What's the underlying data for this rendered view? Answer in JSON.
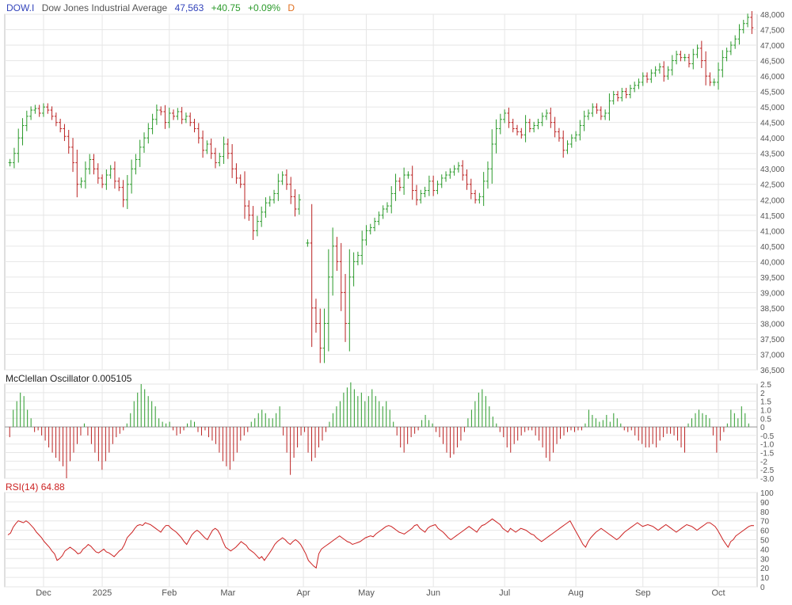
{
  "header": {
    "symbol": "DOW.I",
    "name": "Dow Jones Industrial Average",
    "price": "47,563",
    "change": "+40.75",
    "change_pct": "+0.09%",
    "period": "D"
  },
  "colors": {
    "up": "#2a9a2a",
    "down": "#bb2222",
    "rsi_line": "#cc2222",
    "grid": "#e6e6e6",
    "frame": "#bfbfbf",
    "header_blue": "#3344bb",
    "header_orange": "#e07020"
  },
  "chart_data": [
    {
      "type": "ohlc-bar",
      "panel": "price",
      "name": "Dow Jones Industrial Average",
      "y_axis_side": "right",
      "ylim": [
        36500,
        48000
      ],
      "y_ticks": [
        "48,000",
        "47,500",
        "47,000",
        "46,500",
        "46,000",
        "45,500",
        "45,000",
        "44,500",
        "44,000",
        "43,500",
        "43,000",
        "42,500",
        "42,000",
        "41,500",
        "41,000",
        "40,500",
        "40,000",
        "39,500",
        "39,000",
        "38,500",
        "38,000",
        "37,500",
        "37,000",
        "36,500"
      ],
      "x_ticks": [
        "Dec",
        "2025",
        "Feb",
        "Mar",
        "Apr",
        "May",
        "Jun",
        "Jul",
        "Aug",
        "Sep",
        "Oct"
      ],
      "x_tick_positions_bar": [
        10,
        29,
        50,
        68,
        91,
        111,
        132,
        155,
        177,
        198,
        221
      ],
      "grid": true,
      "closes": [
        43200,
        43500,
        44000,
        44400,
        44700,
        44900,
        44950,
        44800,
        45000,
        44900,
        44700,
        44500,
        44300,
        44050,
        43700,
        43200,
        42500,
        42600,
        43000,
        43300,
        43000,
        42700,
        42500,
        42800,
        43000,
        42600,
        42400,
        42000,
        42500,
        43000,
        43300,
        43700,
        44000,
        44300,
        44600,
        44900,
        44850,
        44500,
        44800,
        44700,
        44850,
        44600,
        44700,
        44500,
        44300,
        44000,
        43600,
        43800,
        43500,
        43200,
        43400,
        43800,
        43500,
        43000,
        42700,
        42500,
        41800,
        41500,
        41000,
        41300,
        41600,
        41900,
        42000,
        42200,
        42600,
        42800,
        42500,
        42100,
        41700,
        42000,
        null,
        40600,
        38500,
        38000,
        37200,
        38000,
        39500,
        40500,
        40000,
        39000,
        38000,
        39500,
        40000,
        40200,
        40700,
        41000,
        41100,
        41300,
        41500,
        41700,
        41800,
        42200,
        42600,
        42400,
        42800,
        42800,
        42300,
        42000,
        42200,
        42300,
        42600,
        42300,
        42500,
        42700,
        42800,
        42900,
        43000,
        43100,
        42800,
        42500,
        42200,
        42000,
        42100,
        42600,
        43000,
        43800,
        44300,
        44600,
        44800,
        44500,
        44300,
        44200,
        44100,
        44500,
        44300,
        44400,
        44500,
        44700,
        44800,
        44500,
        44200,
        44000,
        43600,
        43800,
        44000,
        44100,
        44400,
        44700,
        44800,
        45000,
        44900,
        44700,
        44800,
        45200,
        45400,
        45300,
        45500,
        45400,
        45600,
        45700,
        45800,
        46000,
        45900,
        46100,
        46200,
        46300,
        46000,
        46200,
        46500,
        46700,
        46600,
        46600,
        46400,
        46700,
        46900,
        46500,
        46000,
        45800,
        45800,
        46200,
        46600,
        46800,
        47000,
        47200,
        47500,
        47700,
        47900,
        47563
      ],
      "values_note_omitted": true
    },
    {
      "type": "bar",
      "panel": "McClellan Oscillator",
      "title": "McClellan Oscillator",
      "last_value": "0.005105",
      "ylim": [
        -3.0,
        2.5
      ],
      "y_ticks": [
        "2.5",
        "2",
        "1.5",
        "1.0",
        "0.5",
        "0",
        "-0.5",
        "-1.0",
        "-1.5",
        "-2",
        "-2.5",
        "-3.0"
      ],
      "values": [
        -0.6,
        1.0,
        1.5,
        2.0,
        1.8,
        1.0,
        0.5,
        -0.3,
        -0.2,
        -0.5,
        -0.8,
        -1.2,
        -1.5,
        -1.8,
        -2.0,
        -2.3,
        -3.0,
        -2.0,
        -1.5,
        -1.0,
        -0.5,
        0.2,
        -0.5,
        -1.0,
        -1.5,
        -2.0,
        -2.5,
        -2.0,
        -1.5,
        -1.0,
        -0.6,
        -0.4,
        -0.2,
        0.2,
        0.8,
        1.5,
        2.0,
        2.5,
        2.2,
        1.8,
        1.5,
        1.2,
        0.5,
        0.3,
        0.2,
        0.3,
        -0.2,
        -0.5,
        -0.4,
        -0.2,
        0.2,
        0.4,
        0.3,
        -0.3,
        -0.5,
        -0.2,
        -0.6,
        -0.8,
        -1.0,
        -1.5,
        -2.0,
        -2.3,
        -2.5,
        -2.0,
        -1.5,
        -0.8,
        -0.5,
        -0.3,
        0.3,
        0.5,
        0.8,
        1.0,
        0.8,
        0.5,
        0.5,
        0.8,
        1.2,
        -0.5,
        -1.5,
        -2.8,
        -1.8,
        -1.2,
        -0.5,
        -0.3,
        -1.5,
        -2.0,
        -1.8,
        -1.2,
        -0.8,
        -0.3,
        0.3,
        0.8,
        1.2,
        1.5,
        2.0,
        2.3,
        2.6,
        2.2,
        1.8,
        2.0,
        1.5,
        1.8,
        2.2,
        1.8,
        1.5,
        1.2,
        1.5,
        1.0,
        0.3,
        -0.5,
        -1.2,
        -1.5,
        -1.0,
        -0.6,
        -0.4,
        -0.2,
        0.4,
        0.7,
        0.4,
        0.2,
        -0.3,
        -0.6,
        -1.0,
        -1.5,
        -1.8,
        -1.6,
        -1.2,
        -0.8,
        -0.3,
        0.5,
        1.0,
        1.5,
        2.0,
        2.2,
        1.8,
        1.2,
        0.6,
        0.2,
        -0.3,
        -0.6,
        -1.2,
        -1.5,
        -1.0,
        -0.8,
        -0.5,
        -0.3,
        -0.2,
        -0.2,
        -0.5,
        -0.8,
        -1.2,
        -1.8,
        -2.0,
        -1.5,
        -1.0,
        -0.7,
        -0.5,
        -0.3,
        -0.2,
        -0.3,
        -0.2,
        -0.2,
        0.2,
        1.0,
        0.7,
        0.5,
        0.3,
        0.4,
        0.7,
        0.3,
        0.8,
        0.5,
        0.2,
        -0.2,
        -0.3,
        -0.2,
        -0.5,
        -0.8,
        -1.0,
        -1.2,
        -1.2,
        -1.0,
        -1.2,
        -0.8,
        -0.6,
        -0.4,
        -0.4,
        -0.5,
        -0.8,
        -1.2,
        -1.5,
        0.2,
        0.5,
        0.8,
        1.0,
        0.8,
        0.7,
        0.5,
        -0.5,
        -1.5,
        -0.8,
        -0.3,
        0.2,
        1.0,
        0.8,
        0.5,
        1.2,
        0.8,
        0.2,
        0.0
      ]
    },
    {
      "type": "line",
      "panel": "RSI",
      "title": "RSI(14)",
      "last_value": "64.88",
      "ylim": [
        0,
        100
      ],
      "y_ticks": [
        "100",
        "90",
        "80",
        "70",
        "60",
        "50",
        "40",
        "30",
        "20",
        "10",
        "0"
      ],
      "values": [
        55,
        57,
        63,
        67,
        70,
        69,
        68,
        70,
        68,
        65,
        62,
        58,
        55,
        52,
        48,
        45,
        42,
        38,
        35,
        28,
        30,
        33,
        38,
        40,
        42,
        40,
        38,
        35,
        36,
        40,
        42,
        45,
        43,
        40,
        37,
        36,
        38,
        40,
        37,
        36,
        34,
        32,
        35,
        38,
        40,
        45,
        52,
        55,
        58,
        62,
        65,
        66,
        65,
        68,
        67,
        66,
        64,
        62,
        60,
        58,
        62,
        65,
        65,
        62,
        60,
        58,
        55,
        52,
        48,
        45,
        50,
        55,
        58,
        60,
        58,
        55,
        52,
        50,
        55,
        60,
        62,
        60,
        55,
        48,
        42,
        40,
        38,
        40,
        42,
        45,
        48,
        46,
        44,
        40,
        38,
        36,
        33,
        30,
        32,
        28,
        32,
        36,
        40,
        45,
        48,
        50,
        52,
        50,
        47,
        45,
        48,
        50,
        48,
        45,
        40,
        35,
        28,
        25,
        22,
        20,
        35,
        40,
        42,
        44,
        46,
        48,
        50,
        52,
        54,
        52,
        50,
        48,
        47,
        45,
        46,
        47,
        48,
        50,
        52,
        53,
        54,
        53,
        56,
        58,
        60,
        62,
        64,
        65,
        64,
        62,
        60,
        58,
        57,
        56,
        58,
        60,
        62,
        65,
        66,
        62,
        60,
        58,
        62,
        64,
        65,
        66,
        62,
        60,
        58,
        55,
        52,
        50,
        52,
        54,
        56,
        58,
        60,
        62,
        64,
        62,
        60,
        58,
        62,
        65,
        66,
        68,
        70,
        72,
        70,
        68,
        66,
        62,
        60,
        58,
        62,
        60,
        58,
        60,
        62,
        61,
        60,
        58,
        56,
        55,
        52,
        50,
        48,
        50,
        52,
        54,
        56,
        58,
        60,
        62,
        64,
        66,
        68,
        70,
        65,
        60,
        55,
        50,
        45,
        42,
        48,
        52,
        55,
        58,
        60,
        62,
        60,
        58,
        56,
        54,
        52,
        50,
        52,
        55,
        58,
        60,
        62,
        64,
        66,
        68,
        66,
        64,
        65,
        66,
        65,
        64,
        62,
        60,
        62,
        64,
        66,
        64,
        62,
        60,
        58,
        60,
        62,
        64,
        66,
        65,
        64,
        62,
        60,
        62,
        64,
        66,
        68,
        68,
        66,
        64,
        60,
        55,
        50,
        46,
        42,
        48,
        50,
        54,
        56,
        58,
        60,
        62,
        64,
        65,
        64.88
      ]
    }
  ]
}
